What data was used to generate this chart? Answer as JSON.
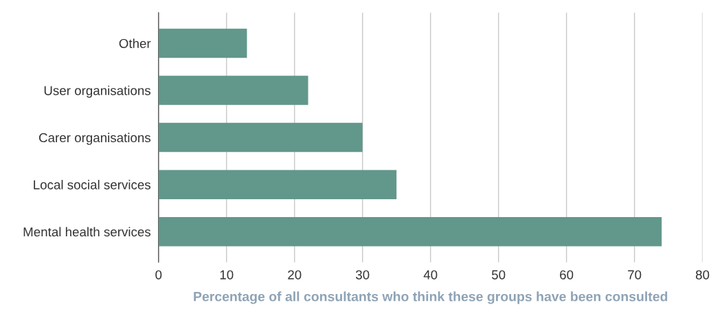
{
  "chart_data": {
    "type": "bar",
    "orientation": "horizontal",
    "xlabel": "Percentage of all consultants who think these groups have been consulted",
    "categories": [
      "Other",
      "User organisations",
      "Carer organisations",
      "Local social services",
      "Mental health services"
    ],
    "values": [
      13,
      22,
      30,
      35,
      74
    ],
    "color": "#62978b",
    "xlim": [
      0,
      80
    ],
    "xticks": [
      0,
      10,
      20,
      30,
      40,
      50,
      60,
      70,
      80
    ],
    "grid": "x"
  }
}
